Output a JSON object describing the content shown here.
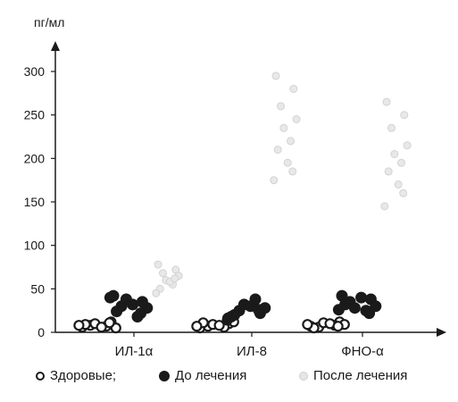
{
  "chart_data": {
    "type": "scatter",
    "title": "",
    "xlabel": "",
    "ylabel": "пг/мл",
    "ylim": [
      0,
      310
    ],
    "yticks": [
      0,
      50,
      100,
      150,
      200,
      250,
      300
    ],
    "categories": [
      "ИЛ-1α",
      "ИЛ-8",
      "ФНО-α"
    ],
    "grid": false,
    "legend_position": "bottom",
    "series": [
      {
        "name": "Здоровые;",
        "marker": "hollow-circle",
        "color": "#1a1a1a",
        "values": [
          [
            6,
            12,
            8,
            5,
            10,
            7,
            9,
            6,
            11,
            8
          ],
          [
            5,
            10,
            7,
            12,
            9,
            6,
            11,
            8,
            14,
            7
          ],
          [
            7,
            12,
            6,
            9,
            11,
            8,
            5,
            10,
            7,
            9
          ]
        ]
      },
      {
        "name": "До лечения",
        "marker": "filled-circle",
        "color": "#1a1a1a",
        "values": [
          [
            42,
            35,
            30,
            28,
            38,
            18,
            24,
            32,
            22,
            40
          ],
          [
            18,
            22,
            25,
            28,
            32,
            38,
            20,
            30,
            26,
            16
          ],
          [
            42,
            38,
            35,
            30,
            28,
            25,
            32,
            40,
            22,
            26
          ]
        ]
      },
      {
        "name": "После лечения",
        "marker": "light-circle",
        "color": "#dddddd",
        "values": [
          [
            78,
            72,
            68,
            65,
            60,
            55,
            50,
            58,
            62,
            45
          ],
          [
            295,
            280,
            260,
            245,
            235,
            220,
            210,
            195,
            185,
            175
          ],
          [
            265,
            250,
            235,
            215,
            205,
            195,
            185,
            170,
            160,
            145
          ]
        ]
      }
    ]
  }
}
